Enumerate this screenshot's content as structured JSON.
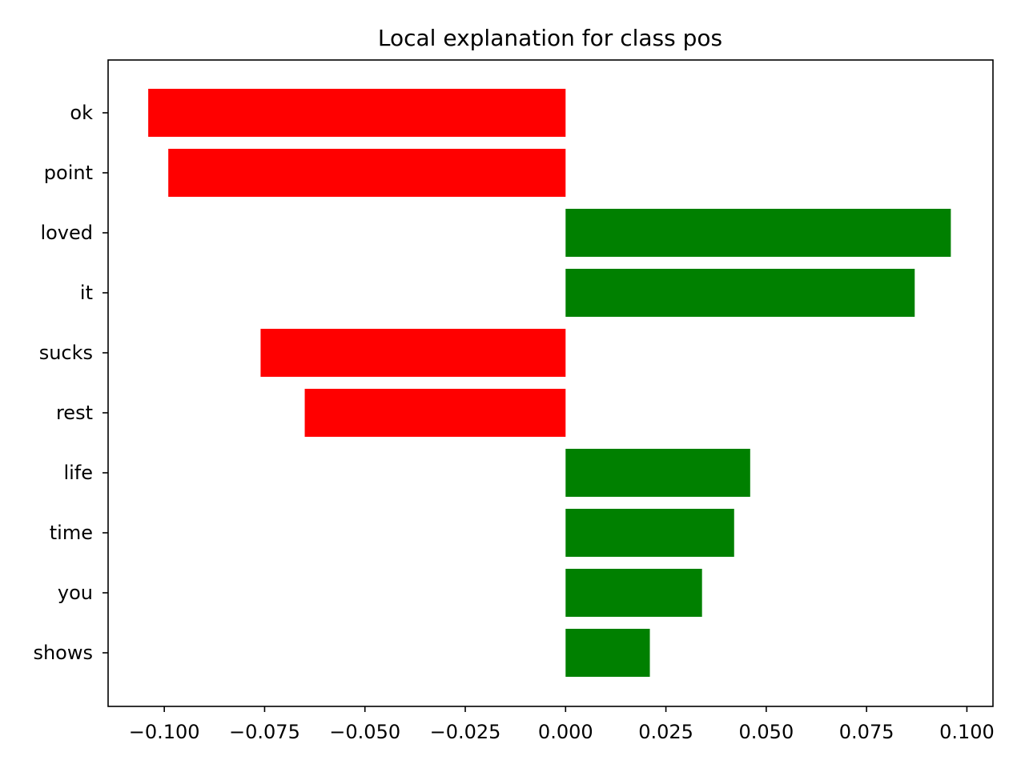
{
  "chart_data": {
    "type": "bar",
    "orientation": "horizontal",
    "title": "Local explanation for class pos",
    "xlabel": "",
    "ylabel": "",
    "categories": [
      "ok",
      "point",
      "loved",
      "it",
      "sucks",
      "rest",
      "life",
      "time",
      "you",
      "shows"
    ],
    "values": [
      -0.104,
      -0.099,
      0.096,
      0.087,
      -0.076,
      -0.065,
      0.046,
      0.042,
      0.034,
      0.021
    ],
    "xlim": [
      -0.114,
      0.1065
    ],
    "xticks": [
      -0.1,
      -0.075,
      -0.05,
      -0.025,
      0.0,
      0.025,
      0.05,
      0.075,
      0.1
    ],
    "xtick_labels": [
      "−0.100",
      "−0.075",
      "−0.050",
      "−0.025",
      "0.000",
      "0.025",
      "0.050",
      "0.075",
      "0.100"
    ],
    "grid": false,
    "colors": {
      "positive": "#008000",
      "negative": "#ff0000"
    }
  }
}
